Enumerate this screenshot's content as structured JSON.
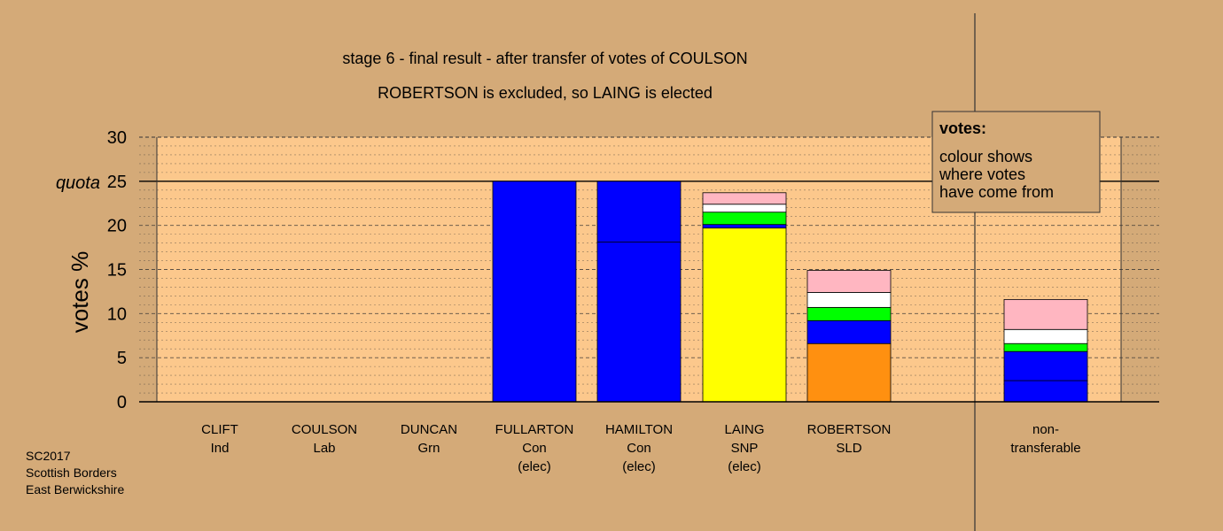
{
  "chart_data": {
    "type": "bar",
    "title": "stage 6 - final result - after transfer of votes of COULSON",
    "subtitle": "ROBERTSON is excluded, so LAING is elected",
    "ylabel": "votes %",
    "ylim": [
      0,
      30
    ],
    "yticks": [
      "0",
      "5",
      "10",
      "15",
      "20",
      "25",
      "30"
    ],
    "quota_label": "quota",
    "quota_value": 25,
    "legend": {
      "title": "votes:",
      "lines": [
        "colour shows",
        "where votes",
        "have come from"
      ]
    },
    "footer": [
      "SC2017",
      "Scottish Borders",
      "East Berwickshire"
    ],
    "colors": {
      "background": "#d4aa78",
      "plot_area": "#fcc88c",
      "Con": "#0000ff",
      "SNP": "#ffff00",
      "SLD": "#ff9010",
      "Grn": "#00ff00",
      "Lab": "#ffffff",
      "Ind": "#ffb6c1",
      "separator": "#000066"
    },
    "candidates": [
      {
        "name": "CLIFT",
        "party": "Ind",
        "status": "",
        "segments": []
      },
      {
        "name": "COULSON",
        "party": "Lab",
        "status": "",
        "segments": []
      },
      {
        "name": "DUNCAN",
        "party": "Grn",
        "status": "",
        "segments": []
      },
      {
        "name": "FULLARTON",
        "party": "Con",
        "status": "(elec)",
        "segments": [
          {
            "from": "Con",
            "value": 25.0
          }
        ]
      },
      {
        "name": "HAMILTON",
        "party": "Con",
        "status": "(elec)",
        "segments": [
          {
            "from": "Con",
            "value": 18.1
          },
          {
            "from": "Con",
            "value": 6.9
          }
        ]
      },
      {
        "name": "LAING",
        "party": "SNP",
        "status": "(elec)",
        "segments": [
          {
            "from": "SNP",
            "value": 19.7
          },
          {
            "from": "Con",
            "value": 0.4
          },
          {
            "from": "Grn",
            "value": 1.4
          },
          {
            "from": "Lab",
            "value": 0.9
          },
          {
            "from": "Ind",
            "value": 1.3
          }
        ]
      },
      {
        "name": "ROBERTSON",
        "party": "SLD",
        "status": "",
        "segments": [
          {
            "from": "SLD",
            "value": 6.6
          },
          {
            "from": "Con",
            "value": 2.6
          },
          {
            "from": "Grn",
            "value": 1.5
          },
          {
            "from": "Lab",
            "value": 1.7
          },
          {
            "from": "Ind",
            "value": 2.5
          }
        ]
      },
      {
        "name": "non-",
        "party": "transferable",
        "status": "",
        "segments": [
          {
            "from": "Con",
            "value": 2.4
          },
          {
            "from": "Con",
            "value": 3.3
          },
          {
            "from": "Grn",
            "value": 0.9
          },
          {
            "from": "Lab",
            "value": 1.6
          },
          {
            "from": "Ind",
            "value": 3.4
          }
        ]
      }
    ]
  }
}
